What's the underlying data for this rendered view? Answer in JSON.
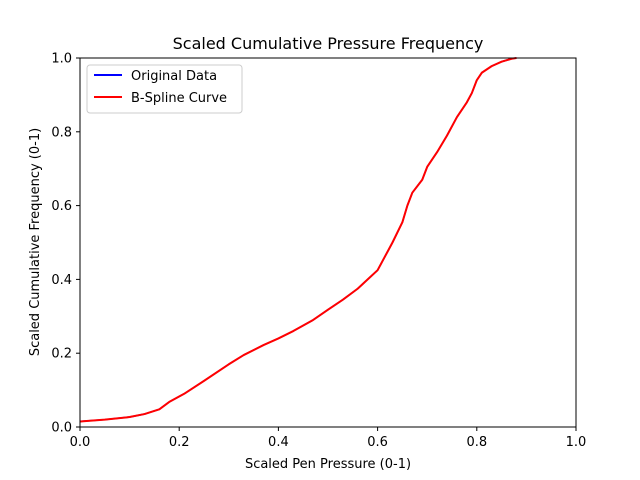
{
  "chart_data": {
    "type": "line",
    "title": "Scaled Cumulative Pressure Frequency",
    "xlabel": "Scaled Pen Pressure (0-1)",
    "ylabel": "Scaled Cumulative Frequency (0-1)",
    "xlim": [
      0,
      1
    ],
    "ylim": [
      0,
      1
    ],
    "xticks": [
      "0.0",
      "0.2",
      "0.4",
      "0.6",
      "0.8",
      "1.0"
    ],
    "yticks": [
      "0.0",
      "0.2",
      "0.4",
      "0.6",
      "0.8",
      "1.0"
    ],
    "grid": false,
    "legend_position": "upper-left",
    "series": [
      {
        "name": "Original Data",
        "color": "#0000ff",
        "x": [
          0.0,
          0.01,
          0.05,
          0.1,
          0.13,
          0.16,
          0.18,
          0.21,
          0.25,
          0.3,
          0.33,
          0.37,
          0.4,
          0.43,
          0.47,
          0.5,
          0.53,
          0.56,
          0.58,
          0.6,
          0.61,
          0.62,
          0.63,
          0.65,
          0.66,
          0.67,
          0.69,
          0.7,
          0.72,
          0.74,
          0.76,
          0.78,
          0.79,
          0.8,
          0.81,
          0.83,
          0.85,
          0.87,
          0.88
        ],
        "y": [
          0.015,
          0.016,
          0.02,
          0.027,
          0.035,
          0.048,
          0.068,
          0.09,
          0.125,
          0.17,
          0.195,
          0.222,
          0.24,
          0.26,
          0.29,
          0.318,
          0.345,
          0.375,
          0.4,
          0.425,
          0.45,
          0.475,
          0.5,
          0.555,
          0.6,
          0.635,
          0.67,
          0.705,
          0.745,
          0.79,
          0.84,
          0.88,
          0.905,
          0.94,
          0.96,
          0.978,
          0.99,
          0.998,
          1.0
        ]
      },
      {
        "name": "B-Spline Curve",
        "color": "#ff0000",
        "x": [
          0.0,
          0.01,
          0.05,
          0.1,
          0.13,
          0.16,
          0.18,
          0.21,
          0.25,
          0.3,
          0.33,
          0.37,
          0.4,
          0.43,
          0.47,
          0.5,
          0.53,
          0.56,
          0.58,
          0.6,
          0.61,
          0.62,
          0.63,
          0.65,
          0.66,
          0.67,
          0.69,
          0.7,
          0.72,
          0.74,
          0.76,
          0.78,
          0.79,
          0.8,
          0.81,
          0.83,
          0.85,
          0.87,
          0.88
        ],
        "y": [
          0.015,
          0.016,
          0.02,
          0.027,
          0.035,
          0.048,
          0.068,
          0.09,
          0.125,
          0.17,
          0.195,
          0.222,
          0.24,
          0.26,
          0.29,
          0.318,
          0.345,
          0.375,
          0.4,
          0.425,
          0.45,
          0.475,
          0.5,
          0.555,
          0.6,
          0.635,
          0.67,
          0.705,
          0.745,
          0.79,
          0.84,
          0.88,
          0.905,
          0.94,
          0.96,
          0.978,
          0.99,
          0.998,
          1.0
        ]
      }
    ]
  }
}
